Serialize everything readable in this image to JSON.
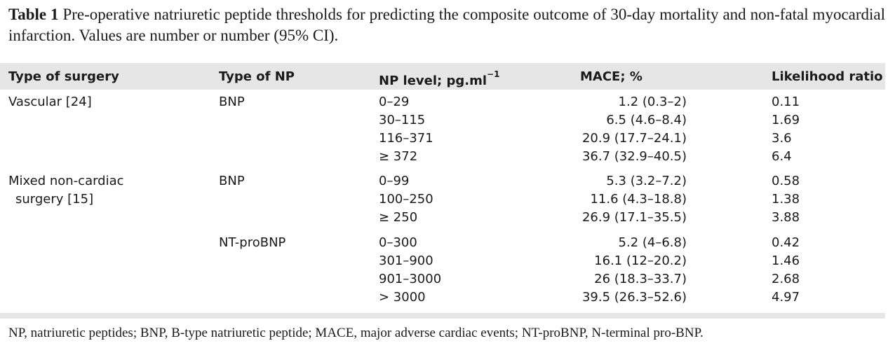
{
  "caption": {
    "label": "Table 1",
    "text": "Pre-operative natriuretic peptide thresholds for predicting the composite outcome of 30-day mortality and non-fatal myocardial infarction. Values are number or number (95% CI)."
  },
  "table": {
    "headers": {
      "surgery": "Type of surgery",
      "np_type": "Type of NP",
      "np_level": "NP level; pg.ml",
      "np_level_sup": "−1",
      "mace": "MACE; %",
      "lr": "Likelihood ratio"
    },
    "groups": [
      {
        "surgery_line1": "Vascular [24]",
        "surgery_line2": "",
        "np_type": "BNP",
        "rows": [
          {
            "level": "0–29",
            "mace": "1.2 (0.3–2)",
            "lr": "0.11"
          },
          {
            "level": "30–115",
            "mace": "6.5 (4.6–8.4)",
            "lr": "1.69"
          },
          {
            "level": "116–371",
            "mace": "20.9 (17.7–24.1)",
            "lr": "3.6"
          },
          {
            "level": "≥ 372",
            "mace": "36.7 (32.9–40.5)",
            "lr": "6.4"
          }
        ]
      },
      {
        "surgery_line1": "Mixed non-cardiac",
        "surgery_line2": "surgery [15]",
        "np_type": "BNP",
        "rows": [
          {
            "level": "0–99",
            "mace": "5.3 (3.2–7.2)",
            "lr": "0.58"
          },
          {
            "level": "100–250",
            "mace": "11.6 (4.3–18.8)",
            "lr": "1.38"
          },
          {
            "level": "≥ 250",
            "mace": "26.9 (17.1–35.5)",
            "lr": "3.88"
          }
        ]
      },
      {
        "surgery_line1": "",
        "surgery_line2": "",
        "np_type": "NT-proBNP",
        "rows": [
          {
            "level": "0–300",
            "mace": "5.2 (4–6.8)",
            "lr": "0.42"
          },
          {
            "level": "301–900",
            "mace": "16.1 (12–20.2)",
            "lr": "1.46"
          },
          {
            "level": "901–3000",
            "mace": "26 (18.3–33.7)",
            "lr": "2.68"
          },
          {
            "level": "> 3000",
            "mace": "39.5 (26.3–52.6)",
            "lr": "4.97"
          }
        ]
      }
    ]
  },
  "footnote": "NP, natriuretic peptides; BNP, B-type natriuretic peptide; MACE, major adverse cardiac events; NT-proBNP, N-terminal pro-BNP."
}
